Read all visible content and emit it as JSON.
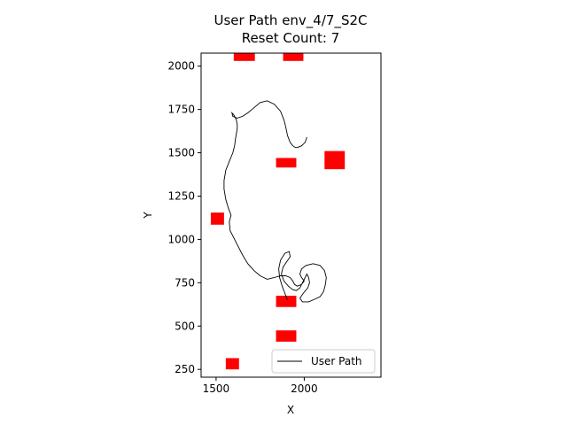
{
  "chart_data": {
    "type": "line",
    "title_line1": "User Path env_4/7_S2C",
    "title_line2": "Reset Count: 7",
    "xlabel": "X",
    "ylabel": "Y",
    "xlim": [
      1415,
      2435
    ],
    "ylim": [
      205,
      2075
    ],
    "xticks": [
      {
        "value": 1500,
        "label": "1500"
      },
      {
        "value": 2000,
        "label": "2000"
      }
    ],
    "yticks": [
      {
        "value": 250,
        "label": "250"
      },
      {
        "value": 500,
        "label": "500"
      },
      {
        "value": 750,
        "label": "750"
      },
      {
        "value": 1000,
        "label": "1000"
      },
      {
        "value": 1250,
        "label": "1250"
      },
      {
        "value": 1500,
        "label": "1500"
      },
      {
        "value": 1750,
        "label": "1750"
      },
      {
        "value": 2000,
        "label": "2000"
      }
    ],
    "legend": {
      "label": "User Path",
      "position": "lower right"
    },
    "colors": {
      "path": "#000000",
      "obstacle": "#ff0000"
    },
    "obstacles": [
      {
        "x": [
          1600,
          1720
        ],
        "y": [
          2030,
          2075
        ]
      },
      {
        "x": [
          1880,
          1995
        ],
        "y": [
          2030,
          2075
        ]
      },
      {
        "x": [
          1840,
          1955
        ],
        "y": [
          1415,
          1470
        ]
      },
      {
        "x": [
          2115,
          2230
        ],
        "y": [
          1405,
          1510
        ]
      },
      {
        "x": [
          1470,
          1545
        ],
        "y": [
          1085,
          1155
        ]
      },
      {
        "x": [
          1840,
          1955
        ],
        "y": [
          610,
          675
        ]
      },
      {
        "x": [
          1840,
          1955
        ],
        "y": [
          410,
          475
        ]
      },
      {
        "x": [
          1555,
          1630
        ],
        "y": [
          250,
          315
        ]
      }
    ],
    "path": {
      "name": "User Path",
      "x": [
        1905,
        1890,
        1875,
        1860,
        1855,
        1865,
        1890,
        1915,
        1920,
        1900,
        1880,
        1870,
        1885,
        1910,
        1935,
        1955,
        1975,
        1990,
        2005,
        2015,
        2025,
        2030,
        2020,
        1995,
        1975,
        1990,
        2025,
        2060,
        2090,
        2110,
        2120,
        2125,
        2115,
        2090,
        2050,
        2010,
        1985,
        1975,
        1985,
        2000,
        1985,
        1960,
        1945,
        1935,
        1920,
        1895,
        1865,
        1830,
        1790,
        1750,
        1715,
        1680,
        1650,
        1620,
        1600,
        1580,
        1575,
        1585,
        1570,
        1555,
        1545,
        1545,
        1555,
        1575,
        1595,
        1605,
        1610,
        1615,
        1620,
        1620,
        1615,
        1600,
        1590,
        1595,
        1620,
        1650,
        1680,
        1715,
        1750,
        1790,
        1830,
        1865,
        1885,
        1895,
        1905,
        1920,
        1935,
        1950,
        1960,
        1985,
        2005,
        2015
      ],
      "y": [
        650,
        690,
        730,
        780,
        830,
        880,
        920,
        930,
        900,
        870,
        840,
        800,
        760,
        730,
        710,
        705,
        720,
        750,
        780,
        800,
        780,
        750,
        720,
        690,
        660,
        640,
        640,
        655,
        670,
        700,
        740,
        780,
        820,
        850,
        860,
        850,
        830,
        800,
        780,
        760,
        740,
        730,
        740,
        760,
        780,
        790,
        790,
        780,
        770,
        790,
        820,
        860,
        910,
        970,
        1010,
        1050,
        1100,
        1140,
        1180,
        1230,
        1290,
        1340,
        1400,
        1450,
        1500,
        1540,
        1580,
        1610,
        1640,
        1660,
        1690,
        1720,
        1730,
        1710,
        1700,
        1710,
        1730,
        1760,
        1790,
        1800,
        1780,
        1740,
        1690,
        1650,
        1600,
        1560,
        1540,
        1530,
        1530,
        1540,
        1560,
        1590
      ]
    }
  }
}
